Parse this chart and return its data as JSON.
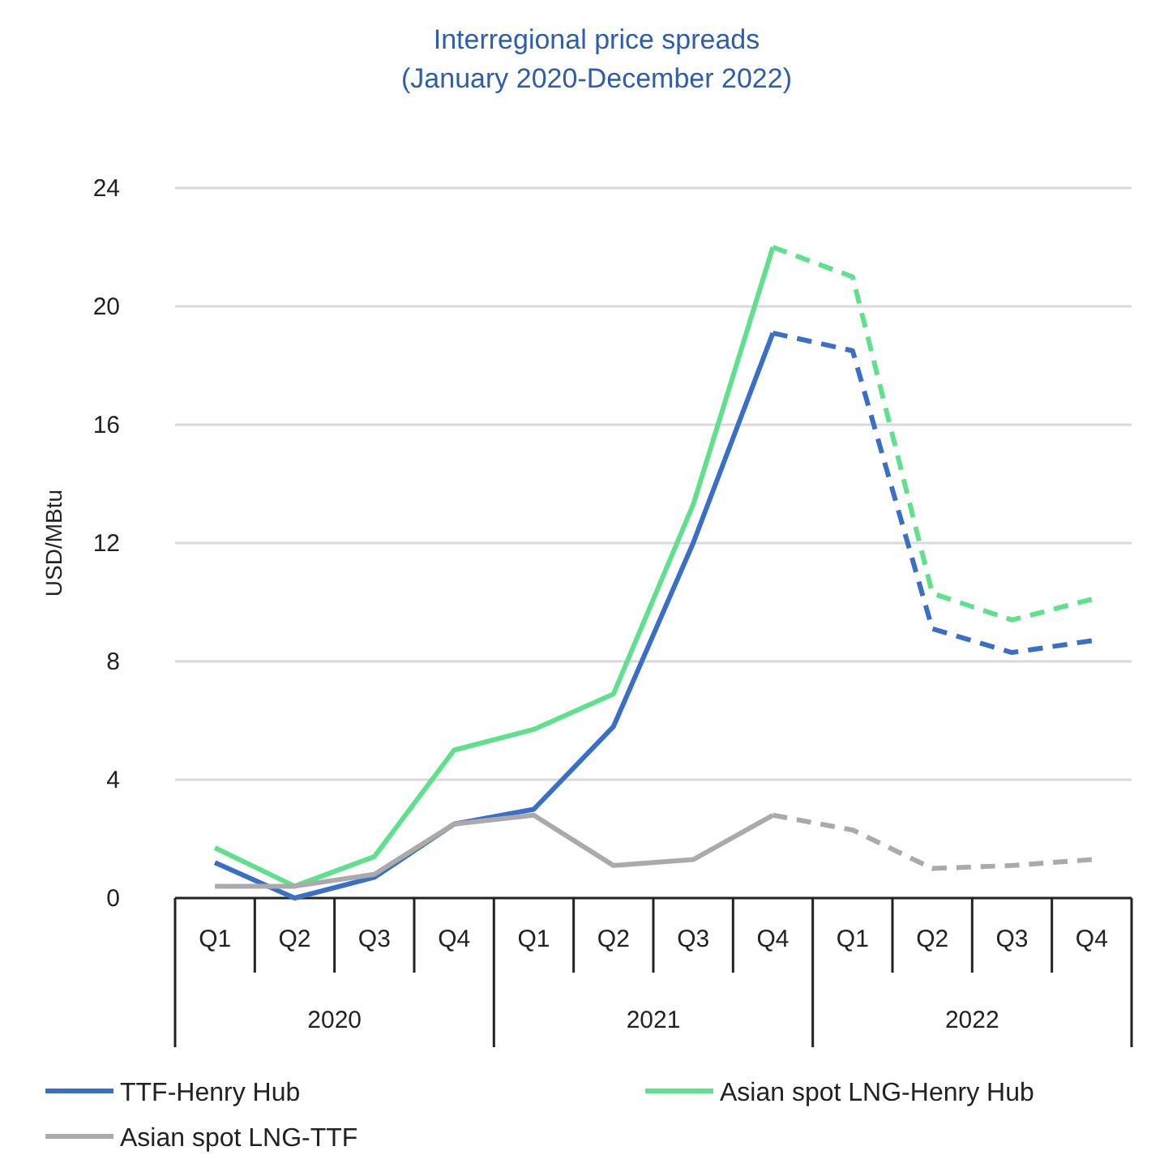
{
  "chart_data": {
    "type": "line",
    "title": "Interregional price spreads",
    "subtitle": "(January 2020-December 2022)",
    "ylabel": "USD/MBtu",
    "categories": [
      "Q1",
      "Q2",
      "Q3",
      "Q4",
      "Q1",
      "Q2",
      "Q3",
      "Q4",
      "Q1",
      "Q2",
      "Q3",
      "Q4"
    ],
    "annotations": [
      "2020",
      "2021",
      "2022"
    ],
    "ylim": [
      0,
      24
    ],
    "yticks": [
      0,
      4,
      8,
      12,
      16,
      20,
      24
    ],
    "grid": "y",
    "legend": "bottom",
    "marker": "none",
    "series": [
      {
        "name": "TTF-Henry Hub",
        "color": "#3a6fc8",
        "line_style": "solid",
        "values": [
          1.2,
          0.0,
          0.7,
          2.5,
          3.0,
          5.8,
          12.0,
          19.1,
          null,
          null,
          null,
          null
        ]
      },
      {
        "name": "Asian spot LNG-Henry Hub",
        "color": "#5ee08c",
        "line_style": "solid",
        "values": [
          1.7,
          0.4,
          1.4,
          5.0,
          5.7,
          6.9,
          13.3,
          22.0,
          null,
          null,
          null,
          null
        ]
      },
      {
        "name": "Asian spot LNG-TTF",
        "color": "#aaaaaa",
        "line_style": "solid",
        "values": [
          0.4,
          0.4,
          0.8,
          2.5,
          2.8,
          1.1,
          1.3,
          2.8,
          null,
          null,
          null,
          null
        ]
      },
      {
        "color": "#3a6fc8",
        "line_style": "dashed",
        "values": [
          null,
          null,
          null,
          null,
          null,
          null,
          null,
          19.1,
          18.5,
          9.1,
          8.3,
          8.7
        ]
      },
      {
        "color": "#5ee08c",
        "line_style": "dashed",
        "values": [
          null,
          null,
          null,
          null,
          null,
          null,
          null,
          22.0,
          21.0,
          10.3,
          9.4,
          10.1
        ]
      },
      {
        "color": "#aaaaaa",
        "line_style": "dashed",
        "values": [
          null,
          null,
          null,
          null,
          null,
          null,
          null,
          2.8,
          2.3,
          1.0,
          1.1,
          1.3
        ]
      }
    ]
  }
}
